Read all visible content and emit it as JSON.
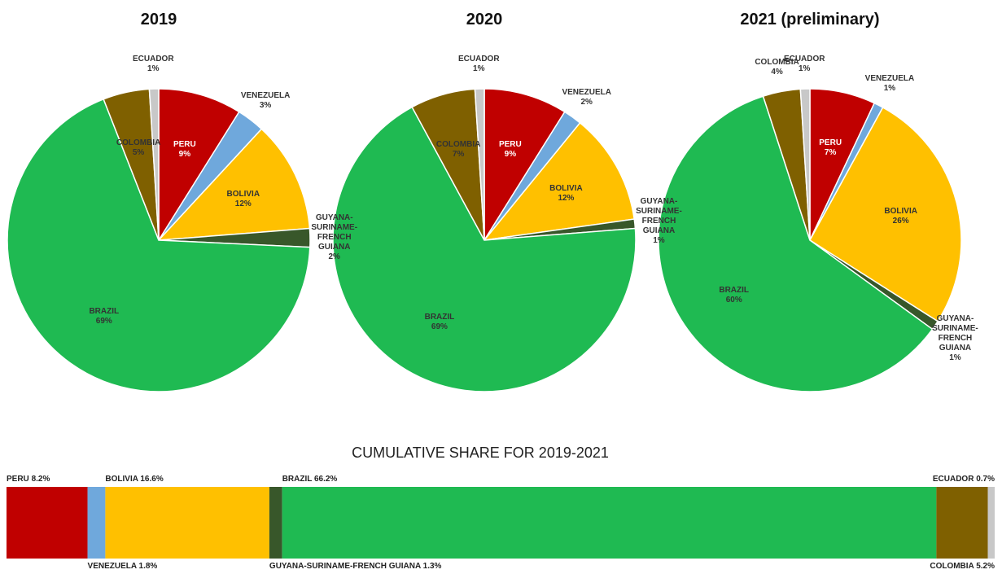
{
  "chart_data": [
    {
      "type": "pie",
      "title": "2019",
      "categories": [
        "PERU",
        "VENEZUELA",
        "BOLIVIA",
        "GUYANA-SURINAME-FRENCH GUIANA",
        "BRAZIL",
        "COLOMBIA",
        "ECUADOR"
      ],
      "values": [
        9,
        3,
        12,
        2,
        69,
        5,
        1
      ],
      "value_labels": [
        "9%",
        "3%",
        "12%",
        "2%",
        "69%",
        "5%",
        "1%"
      ],
      "colors": [
        "#c00000",
        "#6fa8dc",
        "#ffc000",
        "#38572a",
        "#1fba52",
        "#7f6000",
        "#c8c8c8"
      ]
    },
    {
      "type": "pie",
      "title": "2020",
      "categories": [
        "PERU",
        "VENEZUELA",
        "BOLIVIA",
        "GUYANA-SURINAME-FRENCH GUIANA",
        "BRAZIL",
        "COLOMBIA",
        "ECUADOR"
      ],
      "values": [
        9,
        2,
        12,
        1,
        69,
        7,
        1
      ],
      "value_labels": [
        "9%",
        "2%",
        "12%",
        "1%",
        "69%",
        "7%",
        "1%"
      ],
      "colors": [
        "#c00000",
        "#6fa8dc",
        "#ffc000",
        "#38572a",
        "#1fba52",
        "#7f6000",
        "#c8c8c8"
      ]
    },
    {
      "type": "pie",
      "title": "2021 (preliminary)",
      "categories": [
        "PERU",
        "VENEZUELA",
        "BOLIVIA",
        "GUYANA-SURINAME-FRENCH GUIANA",
        "BRAZIL",
        "COLOMBIA",
        "ECUADOR"
      ],
      "values": [
        7,
        1,
        26,
        1,
        60,
        4,
        1
      ],
      "value_labels": [
        "7%",
        "1%",
        "26%",
        "1%",
        "60%",
        "4%",
        "1%"
      ],
      "colors": [
        "#c00000",
        "#6fa8dc",
        "#ffc000",
        "#38572a",
        "#1fba52",
        "#7f6000",
        "#c8c8c8"
      ]
    },
    {
      "type": "bar",
      "orientation": "horizontal",
      "stacked": true,
      "title": "CUMULATIVE SHARE FOR 2019-2021",
      "xlim": [
        0,
        100
      ],
      "series": [
        {
          "name": "PERU",
          "color": "#c00000",
          "values": [
            8.2
          ],
          "value_labels": [
            "8.2%"
          ]
        },
        {
          "name": "VENEZUELA",
          "color": "#6fa8dc",
          "values": [
            1.8
          ],
          "value_labels": [
            "1.8%"
          ]
        },
        {
          "name": "BOLIVIA",
          "color": "#ffc000",
          "values": [
            16.6
          ],
          "value_labels": [
            "16.6%"
          ]
        },
        {
          "name": "GUYANA-SURINAME-FRENCH GUIANA",
          "color": "#38572a",
          "values": [
            1.3
          ],
          "value_labels": [
            "1.3%"
          ]
        },
        {
          "name": "BRAZIL",
          "color": "#1fba52",
          "values": [
            66.2
          ],
          "value_labels": [
            "66.2%"
          ]
        },
        {
          "name": "COLOMBIA",
          "color": "#7f6000",
          "values": [
            5.2
          ],
          "value_labels": [
            "5.2%"
          ]
        },
        {
          "name": "ECUADOR",
          "color": "#c8c8c8",
          "values": [
            0.7
          ],
          "value_labels": [
            "0.7%"
          ]
        }
      ]
    }
  ]
}
